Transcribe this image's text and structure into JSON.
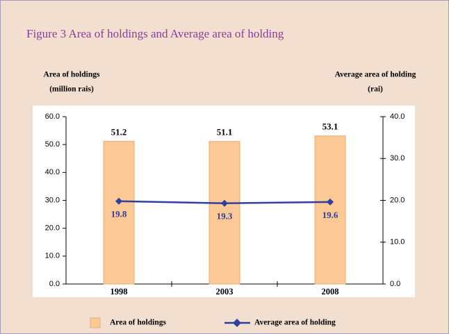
{
  "chart_data": {
    "type": "bar",
    "title": "Figure  3   Area of holdings and Average area of holding",
    "y_label": [
      "Area of holdings",
      "(million rais)"
    ],
    "y2_label": [
      "Average area of holding",
      "(rai)"
    ],
    "categories": [
      "1998",
      "2003",
      "2008"
    ],
    "series": [
      {
        "name": "Area of holdings",
        "color": "#fcc996",
        "values": [
          51.2,
          51.1,
          53.1
        ]
      },
      {
        "name": "Average area of holding",
        "type": "line",
        "axis": "y2",
        "color": "#2e3f9c",
        "values": [
          19.8,
          19.3,
          19.6
        ]
      }
    ],
    "ylim": [
      0,
      60
    ],
    "yticks": [
      {
        "value": 0,
        "label": "0.0"
      },
      {
        "value": 10,
        "label": "10.0"
      },
      {
        "value": 20,
        "label": "20.0"
      },
      {
        "value": 30,
        "label": "30.0"
      },
      {
        "value": 40,
        "label": "40.0"
      },
      {
        "value": 50,
        "label": "50.0"
      },
      {
        "value": 60,
        "label": "60.0"
      }
    ],
    "y2lim": [
      0,
      40
    ],
    "y2ticks": [
      {
        "value": 0,
        "label": "0.0"
      },
      {
        "value": 10,
        "label": "10.0"
      },
      {
        "value": 20,
        "label": "20.0"
      },
      {
        "value": 30,
        "label": "30.0"
      },
      {
        "value": 40,
        "label": "40.0"
      }
    ],
    "legend": "bottom"
  }
}
